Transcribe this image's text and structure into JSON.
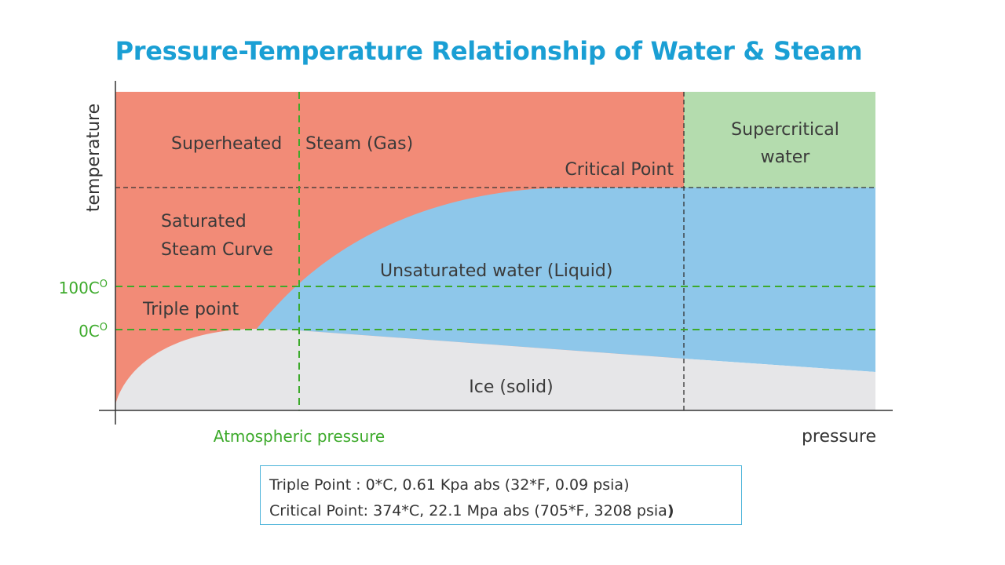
{
  "title": "Pressure-Temperature Relationship of Water & Steam",
  "axes": {
    "y_label": "temperature",
    "x_label": "pressure"
  },
  "markers": {
    "temp_100": "100C",
    "temp_0": "0C",
    "degree_superscript": "O",
    "atmospheric": "Atmospheric pressure"
  },
  "regions": {
    "superheated_left": "Superheated",
    "superheated_right": "Steam (Gas)",
    "critical_point": "Critical Point",
    "supercritical_line1": "Supercritical",
    "supercritical_line2": "water",
    "saturated_line1": "Saturated",
    "saturated_line2": "Steam Curve",
    "unsaturated": "Unsaturated  water (Liquid)",
    "triple_point": "Triple point",
    "ice": "Ice (solid)"
  },
  "info": {
    "line1": "Triple Point : 0*C, 0.61 Kpa abs (32*F, 0.09 psia)",
    "line2_text": "Critical Point: 374*C, 22.1 Mpa abs (705*F, 3208 psia",
    "line2_paren": ")"
  },
  "colors": {
    "title": "#1a9fd4",
    "gas": "#f28b77",
    "liquid": "#8ec7ea",
    "solid": "#e6e6e8",
    "supercritical": "#b4dcae",
    "guide_green": "#3daa2b",
    "guide_dark": "#333333"
  }
}
